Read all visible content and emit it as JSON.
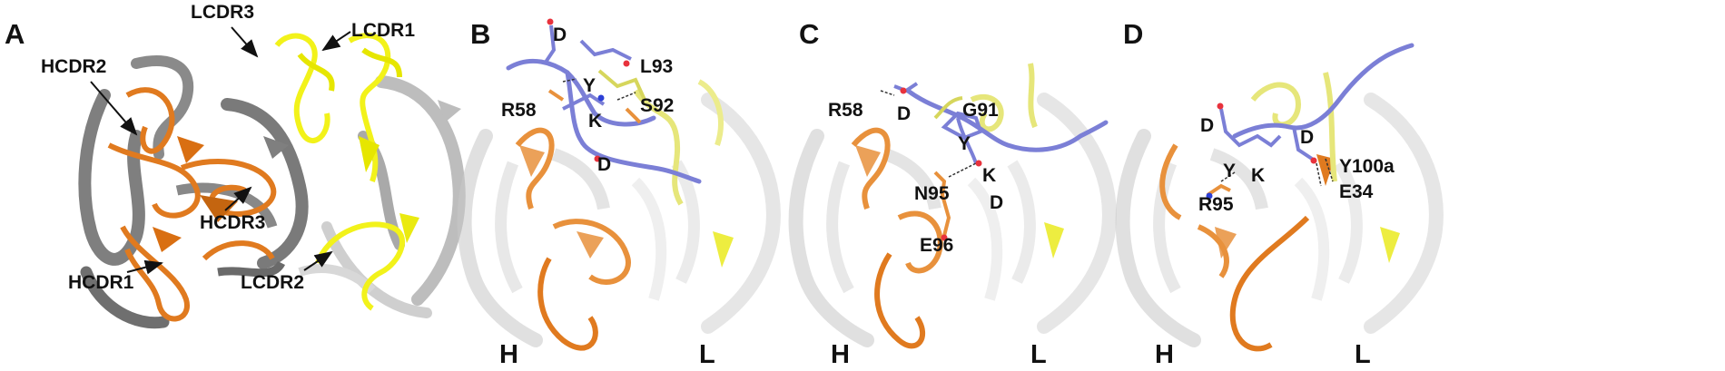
{
  "colors": {
    "heavy_chain": "#7f7f7f",
    "light_chain": "#c8c8c8",
    "hcdr": "#e07a1f",
    "lcdr": "#f2f21a",
    "peptide": "#7b7fd6",
    "oxygen": "#e8323c",
    "nitrogen": "#2c3fd6",
    "hbond": "#333333"
  },
  "panels": [
    {
      "letter": "A",
      "labels": [
        "HCDR2",
        "LCDR3",
        "LCDR1",
        "HCDR3",
        "HCDR1",
        "LCDR2"
      ]
    },
    {
      "letter": "B",
      "labels": [
        "D",
        "L93",
        "Y",
        "S92",
        "R58",
        "K",
        "D"
      ],
      "chain_h": "H",
      "chain_l": "L"
    },
    {
      "letter": "C",
      "labels": [
        "R58",
        "D",
        "G91",
        "Y",
        "K",
        "N95",
        "D",
        "E96"
      ],
      "chain_h": "H",
      "chain_l": "L"
    },
    {
      "letter": "D",
      "labels": [
        "D",
        "D",
        "Y",
        "K",
        "Y100a",
        "R95",
        "E34"
      ],
      "chain_h": "H",
      "chain_l": "L"
    }
  ]
}
